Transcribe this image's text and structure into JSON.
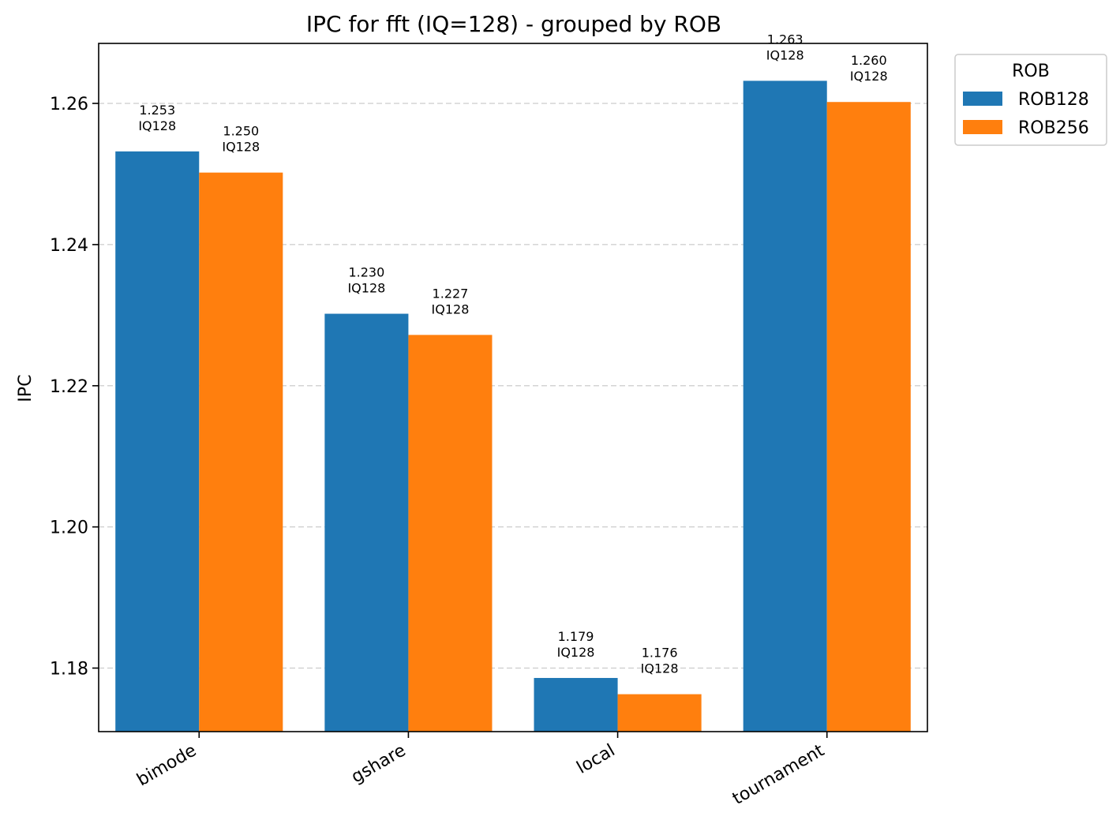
{
  "chart_data": {
    "type": "bar",
    "title": "IPC for fft (IQ=128) - grouped by ROB",
    "xlabel": "",
    "ylabel": "IPC",
    "categories": [
      "bimode",
      "gshare",
      "local",
      "tournament"
    ],
    "ylim": [
      1.171,
      1.2685
    ],
    "yticks": [
      1.18,
      1.2,
      1.22,
      1.24,
      1.26
    ],
    "ytick_labels": [
      "1.18",
      "1.20",
      "1.22",
      "1.24",
      "1.26"
    ],
    "grid": true,
    "legend": {
      "title": "ROB",
      "placement": "outside-top-right"
    },
    "series": [
      {
        "name": "ROB128",
        "color": "#1f77b4",
        "values": [
          1.2532,
          1.2302,
          1.1786,
          1.2632
        ],
        "value_labels": [
          "1.253",
          "1.230",
          "1.179",
          "1.263"
        ],
        "sub_labels": [
          "IQ128",
          "IQ128",
          "IQ128",
          "IQ128"
        ]
      },
      {
        "name": "ROB256",
        "color": "#ff7f0e",
        "values": [
          1.2502,
          1.2272,
          1.1763,
          1.2602
        ],
        "value_labels": [
          "1.250",
          "1.227",
          "1.176",
          "1.260"
        ],
        "sub_labels": [
          "IQ128",
          "IQ128",
          "IQ128",
          "IQ128"
        ]
      }
    ]
  }
}
